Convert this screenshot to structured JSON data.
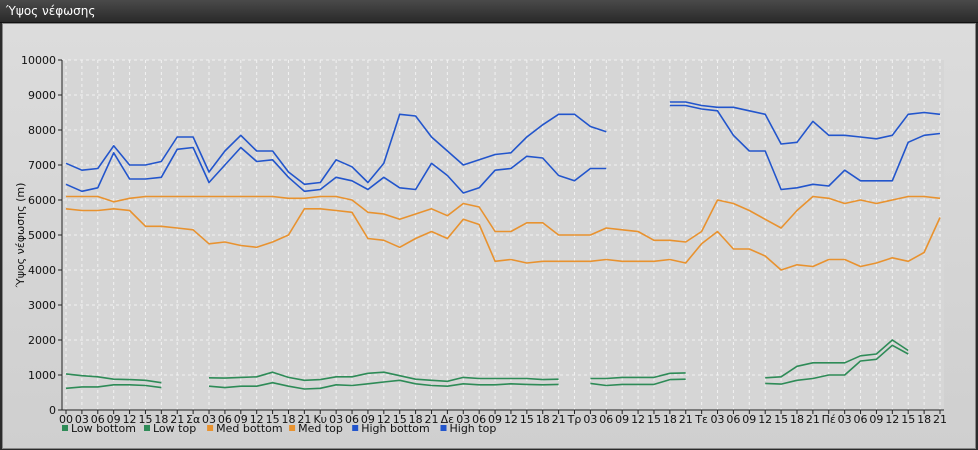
{
  "window": {
    "title": "Ύψος νέφωσης"
  },
  "chart_data": {
    "type": "line",
    "title": "",
    "ylabel": "Ύψος νέφωσης (m)",
    "ylim": [
      0,
      10000
    ],
    "yticks": [
      0,
      1000,
      2000,
      3000,
      4000,
      5000,
      6000,
      7000,
      8000,
      9000,
      10000
    ],
    "categories": [
      "00",
      "03",
      "06",
      "09",
      "12",
      "15",
      "18",
      "21",
      "Σα",
      "03",
      "06",
      "09",
      "12",
      "15",
      "18",
      "21",
      "Κυ",
      "03",
      "06",
      "09",
      "12",
      "15",
      "18",
      "21",
      "Δε",
      "03",
      "06",
      "09",
      "12",
      "15",
      "18",
      "21",
      "Τρ",
      "03",
      "06",
      "09",
      "12",
      "15",
      "18",
      "21",
      "Τε",
      "03",
      "06",
      "09",
      "12",
      "15",
      "18",
      "21",
      "Πέ",
      "03",
      "06",
      "09",
      "12",
      "15",
      "18",
      "21"
    ],
    "grid": true,
    "legend_position": "bottom",
    "series": [
      {
        "name": "Low bottom",
        "color": "#2e8b57",
        "values": [
          620,
          660,
          660,
          720,
          720,
          700,
          640,
          null,
          null,
          680,
          640,
          680,
          680,
          780,
          680,
          600,
          620,
          720,
          700,
          750,
          800,
          850,
          750,
          700,
          680,
          750,
          720,
          720,
          750,
          730,
          720,
          730,
          null,
          760,
          700,
          730,
          730,
          730,
          870,
          880,
          null,
          null,
          null,
          null,
          760,
          740,
          850,
          900,
          1000,
          1000,
          1400,
          1450,
          1850,
          1600,
          null,
          null
        ]
      },
      {
        "name": "Low top",
        "color": "#2e8b57",
        "values": [
          1030,
          980,
          950,
          880,
          870,
          850,
          780,
          null,
          null,
          920,
          910,
          930,
          950,
          1080,
          930,
          850,
          870,
          950,
          950,
          1050,
          1080,
          980,
          880,
          850,
          820,
          930,
          900,
          900,
          900,
          900,
          870,
          880,
          null,
          900,
          900,
          930,
          930,
          930,
          1050,
          1060,
          null,
          null,
          null,
          null,
          920,
          950,
          1250,
          1350,
          1350,
          1350,
          1550,
          1600,
          2000,
          1700,
          null,
          null
        ]
      },
      {
        "name": "Med bottom",
        "color": "#e8922f",
        "values": [
          5750,
          5700,
          5700,
          5750,
          5700,
          5250,
          5250,
          5200,
          5150,
          4750,
          4800,
          4700,
          4650,
          4800,
          5000,
          5750,
          5750,
          5700,
          5650,
          4900,
          4850,
          4650,
          4900,
          5100,
          4900,
          5450,
          5300,
          4250,
          4300,
          4200,
          4250,
          4250,
          4250,
          4250,
          4300,
          4250,
          4250,
          4250,
          4300,
          4200,
          4750,
          5100,
          4600,
          4600,
          4400,
          4000,
          4150,
          4100,
          4300,
          4300,
          4100,
          4200,
          4350,
          4250,
          4500,
          5500
        ]
      },
      {
        "name": "Med top",
        "color": "#e8922f",
        "values": [
          6100,
          6100,
          6100,
          5950,
          6050,
          6100,
          6100,
          6100,
          6100,
          6100,
          6100,
          6100,
          6100,
          6100,
          6050,
          6050,
          6100,
          6100,
          6000,
          5650,
          5600,
          5450,
          5600,
          5750,
          5550,
          5900,
          5800,
          5100,
          5100,
          5350,
          5350,
          5000,
          5000,
          5000,
          5200,
          5150,
          5100,
          4850,
          4850,
          4800,
          5100,
          6000,
          5900,
          5700,
          5450,
          5200,
          5700,
          6100,
          6050,
          5900,
          6000,
          5900,
          6000,
          6100,
          6100,
          6050
        ]
      },
      {
        "name": "High bottom",
        "color": "#2255cc",
        "values": [
          6450,
          6250,
          6350,
          7350,
          6600,
          6600,
          6650,
          7450,
          7500,
          6500,
          7000,
          7500,
          7100,
          7150,
          6650,
          6250,
          6300,
          6650,
          6550,
          6300,
          6650,
          6350,
          6300,
          7050,
          6700,
          6200,
          6350,
          6850,
          6900,
          7250,
          7200,
          6700,
          6550,
          6900,
          6900,
          null,
          null,
          null,
          8700,
          8700,
          8600,
          8550,
          7850,
          7400,
          7400,
          6300,
          6350,
          6450,
          6400,
          6850,
          6550,
          6550,
          6550,
          7650,
          7850,
          7900
        ]
      },
      {
        "name": "High top",
        "color": "#2255cc",
        "values": [
          7050,
          6850,
          6900,
          7550,
          7000,
          7000,
          7100,
          7800,
          7800,
          6800,
          7400,
          7850,
          7400,
          7400,
          6800,
          6450,
          6500,
          7150,
          6950,
          6500,
          7050,
          8450,
          8400,
          7800,
          7400,
          7000,
          7150,
          7300,
          7350,
          7800,
          8150,
          8450,
          8450,
          8100,
          7950,
          null,
          null,
          null,
          8800,
          8800,
          8700,
          8650,
          8650,
          8550,
          8450,
          7600,
          7650,
          8250,
          7850,
          7850,
          7800,
          7750,
          7850,
          8450,
          8500,
          8450
        ]
      }
    ]
  }
}
